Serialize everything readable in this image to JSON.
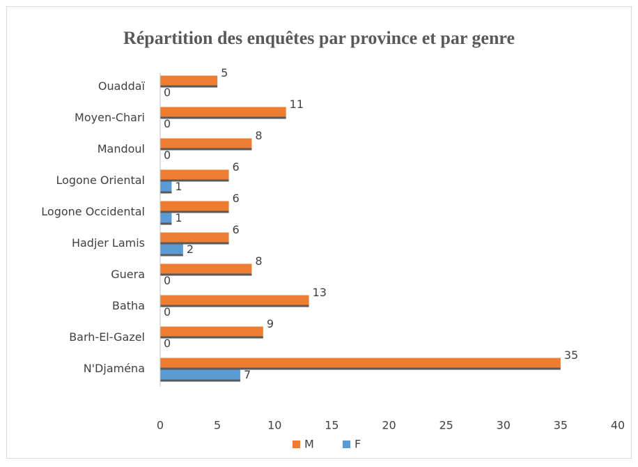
{
  "chart_data": {
    "type": "bar",
    "orientation": "horizontal",
    "title": "Répartition des enquêtes par province et par genre",
    "categories": [
      "N'Djaména",
      "Barh-El-Gazel",
      "Batha",
      "Guera",
      "Hadjer Lamis",
      "Logone Occidental",
      "Logone Oriental",
      "Mandoul",
      "Moyen-Chari",
      "Ouaddaï"
    ],
    "series": [
      {
        "name": "M",
        "color": "#ed7d31",
        "values": [
          35,
          9,
          13,
          8,
          6,
          6,
          6,
          8,
          11,
          5
        ]
      },
      {
        "name": "F",
        "color": "#5b9bd5",
        "values": [
          7,
          0,
          0,
          0,
          2,
          1,
          1,
          0,
          0,
          0
        ]
      }
    ],
    "xlim": [
      0,
      40
    ],
    "xticks": [
      0,
      5,
      10,
      15,
      20,
      25,
      30,
      35,
      40
    ],
    "grid": false,
    "legend": "bottom"
  }
}
